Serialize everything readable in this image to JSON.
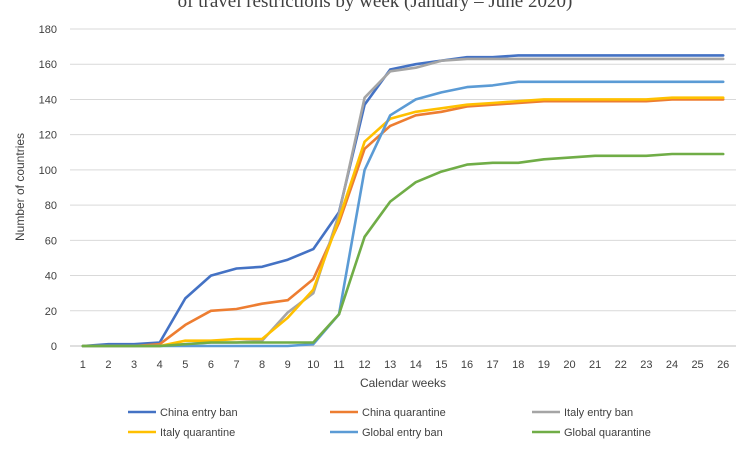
{
  "chart_data": {
    "type": "line",
    "title": "of travel restrictions by week (January – June 2020)",
    "xlabel": "Calendar weeks",
    "ylabel": "Number of countries",
    "ylim": [
      0,
      180
    ],
    "yticks": [
      0,
      20,
      40,
      60,
      80,
      100,
      120,
      140,
      160,
      180
    ],
    "categories": [
      "1",
      "2",
      "3",
      "4",
      "5",
      "6",
      "7",
      "8",
      "9",
      "10",
      "11",
      "12",
      "13",
      "14",
      "15",
      "16",
      "17",
      "18",
      "19",
      "20",
      "21",
      "22",
      "23",
      "24",
      "25",
      "26"
    ],
    "grid": "horizontal",
    "legend_position": "bottom",
    "series": [
      {
        "name": "China entry ban",
        "color": "#4472C4",
        "values": [
          0,
          1,
          1,
          2,
          27,
          40,
          44,
          45,
          49,
          55,
          76,
          137,
          157,
          160,
          162,
          164,
          164,
          165,
          165,
          165,
          165,
          165,
          165,
          165,
          165,
          165
        ]
      },
      {
        "name": "China quarantine",
        "color": "#ED7D31",
        "values": [
          0,
          0,
          0,
          1,
          12,
          20,
          21,
          24,
          26,
          38,
          70,
          112,
          125,
          131,
          133,
          136,
          137,
          138,
          139,
          139,
          139,
          139,
          139,
          140,
          140,
          140
        ]
      },
      {
        "name": "Italy entry ban",
        "color": "#A5A5A5",
        "values": [
          0,
          0,
          0,
          0,
          1,
          2,
          2,
          3,
          19,
          30,
          75,
          141,
          156,
          158,
          162,
          163,
          163,
          163,
          163,
          163,
          163,
          163,
          163,
          163,
          163,
          163
        ]
      },
      {
        "name": "Italy quarantine",
        "color": "#FFC000",
        "values": [
          0,
          0,
          0,
          0,
          3,
          3,
          4,
          4,
          16,
          32,
          72,
          116,
          129,
          133,
          135,
          137,
          138,
          139,
          140,
          140,
          140,
          140,
          140,
          141,
          141,
          141
        ]
      },
      {
        "name": "Global entry ban",
        "color": "#5B9BD5",
        "values": [
          0,
          0,
          0,
          0,
          0,
          0,
          0,
          0,
          0,
          1,
          18,
          100,
          131,
          140,
          144,
          147,
          148,
          150,
          150,
          150,
          150,
          150,
          150,
          150,
          150,
          150
        ]
      },
      {
        "name": "Global quarantine",
        "color": "#70AD47",
        "values": [
          0,
          0,
          0,
          0,
          1,
          2,
          2,
          2,
          2,
          2,
          18,
          62,
          82,
          93,
          99,
          103,
          104,
          104,
          106,
          107,
          108,
          108,
          108,
          109,
          109,
          109
        ]
      }
    ]
  }
}
